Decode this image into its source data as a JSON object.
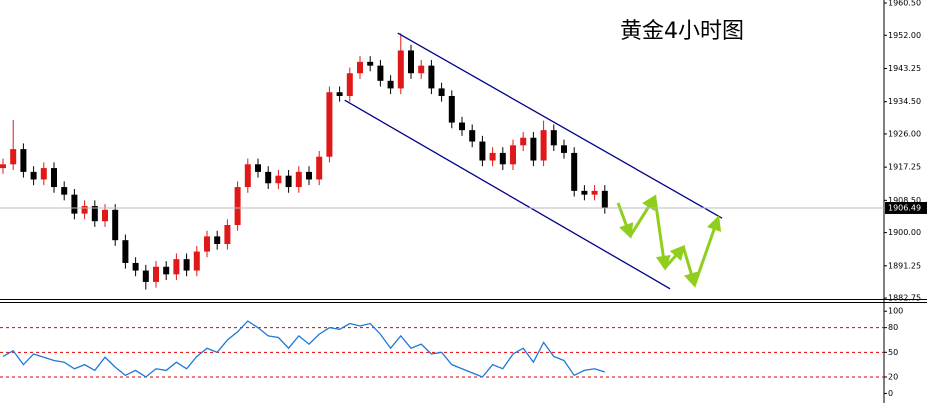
{
  "chart_data": [
    {
      "type": "candlestick",
      "title": "黄金4小时图",
      "open": [
        1917,
        1918,
        1922,
        1916,
        1914,
        1917,
        1912,
        1910,
        1905,
        1907,
        1903,
        1906,
        1898,
        1892,
        1890,
        1887,
        1891,
        1889,
        1893,
        1890,
        1895,
        1899,
        1897,
        1902,
        1912,
        1918,
        1916,
        1913,
        1915,
        1912,
        1916,
        1914,
        1920,
        1937,
        1936,
        1942,
        1945,
        1944,
        1940,
        1938,
        1948,
        1942,
        1944,
        1938,
        1936,
        1929,
        1927,
        1924,
        1919,
        1921,
        1918,
        1923,
        1925,
        1919,
        1927,
        1923,
        1921,
        1911,
        1910,
        1911
      ],
      "high": [
        1919.5,
        1929.7,
        1923.5,
        1917.5,
        1918.5,
        1918.5,
        1913.5,
        1911.5,
        1908.5,
        1908.5,
        1907.5,
        1907.5,
        1899.5,
        1893.5,
        1891.5,
        1892.5,
        1892.5,
        1894.5,
        1894.5,
        1896.5,
        1900.5,
        1900.5,
        1903.5,
        1913.5,
        1919.5,
        1919.5,
        1917.5,
        1916.5,
        1916.5,
        1917.5,
        1917.5,
        1921.5,
        1938.5,
        1938.5,
        1943.5,
        1946.5,
        1946.5,
        1945.5,
        1941.5,
        1952.5,
        1949.5,
        1945.5,
        1945.5,
        1939.5,
        1937.5,
        1930.5,
        1928.5,
        1925.5,
        1922.5,
        1922.5,
        1924.5,
        1926.5,
        1926.5,
        1929.5,
        1928.5,
        1924.5,
        1922.5,
        1912.5,
        1912.5,
        1912.5
      ],
      "low": [
        1915.5,
        1916.5,
        1914.5,
        1912.5,
        1912.5,
        1910.5,
        1908.5,
        1903.5,
        1903.5,
        1901.5,
        1901.5,
        1896.5,
        1890.5,
        1888.5,
        1885,
        1885.5,
        1887.5,
        1887.5,
        1888.5,
        1888.5,
        1893.5,
        1895.5,
        1895.5,
        1900.5,
        1910.5,
        1914.5,
        1911.5,
        1911.5,
        1910.5,
        1910.5,
        1912.5,
        1912.5,
        1918.5,
        1934.5,
        1934.5,
        1940.5,
        1942.5,
        1938.5,
        1936.5,
        1936.5,
        1940.5,
        1940.5,
        1936.5,
        1934.5,
        1927.5,
        1925.5,
        1922.5,
        1917.5,
        1917.5,
        1916.5,
        1916.5,
        1921.5,
        1917.5,
        1917.5,
        1921.5,
        1919.5,
        1909.5,
        1908.5,
        1908.5,
        1905
      ],
      "close": [
        1918,
        1922,
        1916,
        1914,
        1917,
        1912,
        1910,
        1905,
        1907,
        1903,
        1906,
        1898,
        1892,
        1890,
        1887,
        1891,
        1889,
        1893,
        1890,
        1895,
        1899,
        1897,
        1902,
        1912,
        1918,
        1916,
        1913,
        1915,
        1912,
        1916,
        1914,
        1920,
        1937,
        1936,
        1942,
        1945,
        1944,
        1940,
        1938,
        1948,
        1942,
        1944,
        1938,
        1936,
        1929,
        1927,
        1924,
        1919,
        1921,
        1918,
        1923,
        1925,
        1919,
        1927,
        1923,
        1921,
        1911,
        1910,
        1911,
        1906.49
      ],
      "up_color": "#e01818",
      "down_color": "#000000",
      "ylim": [
        1882.5,
        1961.3
      ],
      "yticks": [
        {
          "value": 1960.5,
          "label": "1960.50"
        },
        {
          "value": 1952,
          "label": "1952.00"
        },
        1943.25,
        {
          "value": 1934.5,
          "label": "1934.50"
        },
        {
          "value": 1926,
          "label": "1926.00"
        },
        1917.25,
        {
          "value": 1908.5,
          "label": "1908.50"
        },
        {
          "value": 1900,
          "label": "1900.00"
        },
        1891.25,
        1882.75
      ],
      "last_price": 1906.49,
      "channel": {
        "color": "#00008b",
        "lines": [
          {
            "x": [
              38.7,
              70.5
            ],
            "y": [
              1952.6,
              1903.8
            ]
          },
          {
            "x": [
              33.5,
              65.4
            ],
            "y": [
              1934.9,
              1885.2
            ]
          }
        ]
      },
      "forecast": {
        "color": "#8fce1c",
        "x": [
          60.3,
          61.5,
          63.9,
          64.9,
          66.7,
          67.8,
          70.1
        ],
        "y": [
          1907.8,
          1899.1,
          1909.4,
          1890.7,
          1896.2,
          1886.2,
          1903.8
        ]
      }
    },
    {
      "type": "line",
      "values": [
        45,
        52,
        35,
        48,
        44,
        40,
        38,
        30,
        35,
        28,
        44,
        32,
        22,
        28,
        20,
        30,
        28,
        38,
        30,
        45,
        55,
        50,
        65,
        75,
        88,
        80,
        70,
        68,
        55,
        70,
        60,
        72,
        80,
        78,
        85,
        82,
        85,
        72,
        55,
        70,
        55,
        60,
        48,
        50,
        35,
        30,
        25,
        20,
        35,
        30,
        48,
        55,
        38,
        62,
        45,
        40,
        22,
        28,
        30,
        26
      ],
      "color": "#1e78d8",
      "ylim": [
        -8,
        110
      ],
      "yticks": [
        100,
        80,
        50,
        20,
        0
      ],
      "levels": [
        80,
        50,
        20
      ],
      "level_color": "#e00000"
    }
  ]
}
